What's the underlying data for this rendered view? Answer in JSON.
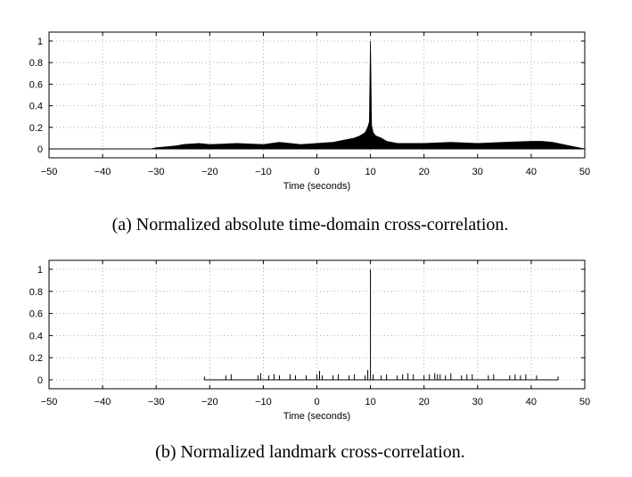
{
  "chart_data": [
    {
      "type": "line",
      "xlabel": "Time (seconds)",
      "ylabel": "",
      "xlim": [
        -50,
        50
      ],
      "ylim": [
        0,
        1
      ],
      "xticks": [
        -50,
        -40,
        -30,
        -20,
        -10,
        0,
        10,
        20,
        30,
        40,
        50
      ],
      "yticks": [
        0,
        0.2,
        0.4,
        0.6,
        0.8,
        1
      ],
      "ytick_labels": [
        "0",
        "0.2",
        "0.4",
        "0.6",
        "0.8",
        "1"
      ],
      "xtick_labels": [
        "−50",
        "−40",
        "−30",
        "−20",
        "−10",
        "0",
        "10",
        "20",
        "30",
        "40",
        "50"
      ],
      "grid": true,
      "caption": "(a) Normalized absolute time-domain cross-correlation.",
      "series": [
        {
          "x": [
            -50,
            -31,
            -30,
            -28,
            -26,
            -25,
            -22,
            -20,
            -15,
            -10,
            -7,
            -5,
            -3,
            0,
            3,
            5,
            7,
            8,
            9,
            9.5,
            9.8,
            10,
            10.2,
            10.5,
            11,
            12,
            13,
            15,
            20,
            25,
            30,
            35,
            40,
            42,
            44,
            46,
            48,
            50
          ],
          "y": [
            0,
            0,
            0.01,
            0.02,
            0.03,
            0.04,
            0.05,
            0.04,
            0.05,
            0.04,
            0.06,
            0.05,
            0.04,
            0.05,
            0.06,
            0.08,
            0.1,
            0.12,
            0.15,
            0.2,
            0.25,
            1,
            0.22,
            0.15,
            0.12,
            0.1,
            0.07,
            0.05,
            0.05,
            0.06,
            0.05,
            0.06,
            0.07,
            0.07,
            0.06,
            0.04,
            0.02,
            0
          ]
        }
      ]
    },
    {
      "type": "line",
      "xlabel": "Time (seconds)",
      "ylabel": "",
      "xlim": [
        -50,
        50
      ],
      "ylim": [
        0,
        1
      ],
      "xticks": [
        -50,
        -40,
        -30,
        -20,
        -10,
        0,
        10,
        20,
        30,
        40,
        50
      ],
      "yticks": [
        0,
        0.2,
        0.4,
        0.6,
        0.8,
        1
      ],
      "ytick_labels": [
        "0",
        "0.2",
        "0.4",
        "0.6",
        "0.8",
        "1"
      ],
      "xtick_labels": [
        "−50",
        "−40",
        "−30",
        "−20",
        "−10",
        "0",
        "10",
        "20",
        "30",
        "40",
        "50"
      ],
      "grid": true,
      "caption": "(b) Normalized landmark cross-correlation.",
      "baseline_range": [
        -21,
        45
      ],
      "series": [
        {
          "x": [
            -21,
            -17,
            -16,
            -11,
            -10.5,
            -9,
            -8,
            -7,
            -5,
            -4,
            -2,
            0,
            0.5,
            1,
            3,
            4,
            6,
            7,
            9,
            9.5,
            10,
            10.5,
            12,
            13,
            15,
            16,
            17,
            18,
            20,
            21,
            22,
            22.5,
            23,
            24,
            25,
            27,
            28,
            29,
            32,
            33,
            36,
            37,
            38,
            39,
            41,
            45
          ],
          "y": [
            0.03,
            0.04,
            0.05,
            0.04,
            0.06,
            0.04,
            0.05,
            0.04,
            0.05,
            0.04,
            0.04,
            0.05,
            0.08,
            0.04,
            0.04,
            0.05,
            0.04,
            0.05,
            0.04,
            0.09,
            1,
            0.05,
            0.04,
            0.05,
            0.04,
            0.05,
            0.06,
            0.05,
            0.04,
            0.05,
            0.06,
            0.05,
            0.05,
            0.04,
            0.06,
            0.04,
            0.05,
            0.05,
            0.04,
            0.05,
            0.04,
            0.05,
            0.04,
            0.05,
            0.04,
            0.03
          ]
        }
      ]
    }
  ]
}
